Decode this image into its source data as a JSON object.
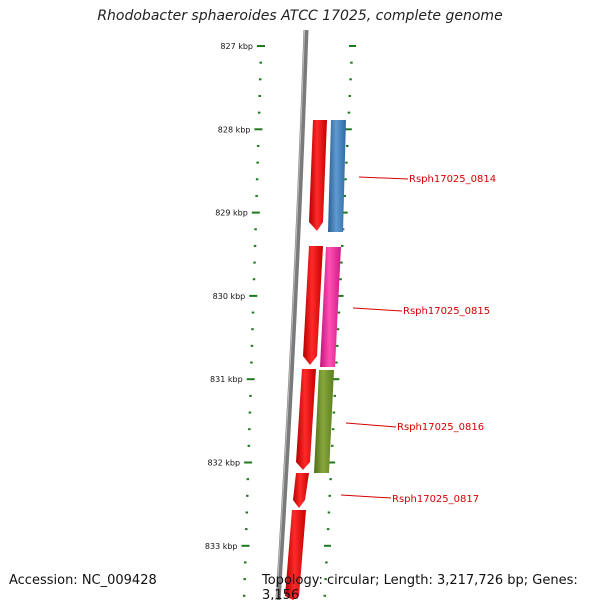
{
  "title": "Rhodobacter sphaeroides ATCC 17025, complete genome",
  "footer": {
    "accession": "Accession: NC_009428",
    "summary": "Topology: circular; Length: 3,217,726 bp; Genes: 3,156"
  },
  "colors": {
    "backbone": "#7a7a7a",
    "ticks": "#1e7a1e",
    "forward_strand": "#ee0000",
    "label": "#d40000"
  },
  "scale": {
    "unit": "kbp",
    "major_ticks": [
      "827 kbp",
      "828 kbp",
      "829 kbp",
      "830 kbp",
      "831 kbp",
      "832 kbp",
      "833 kbp"
    ]
  },
  "features": [
    {
      "name": "Rsph17025_0814",
      "color": "#3f7cb7"
    },
    {
      "name": "Rsph17025_0815",
      "color": "#e8239a"
    },
    {
      "name": "Rsph17025_0816",
      "color": "#6f8f2a"
    },
    {
      "name": "Rsph17025_0817",
      "color": "#ee0000"
    }
  ]
}
